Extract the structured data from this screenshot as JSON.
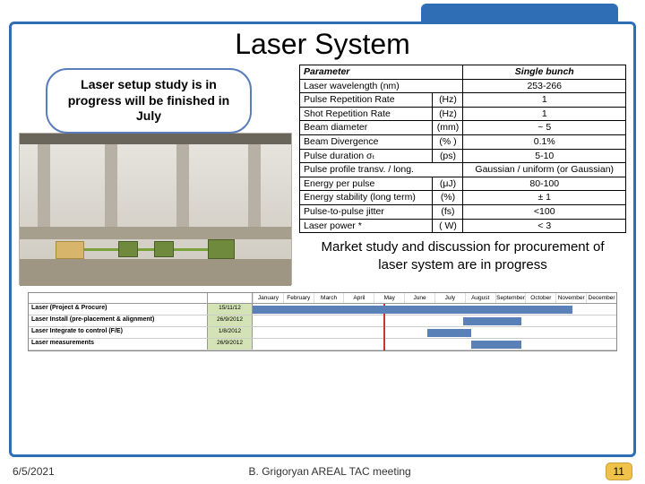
{
  "title": "Laser System",
  "bubble": "Laser setup study is in progress will be finished in July",
  "table": {
    "header_param": "Parameter",
    "header_val": "Single bunch",
    "rows": [
      {
        "name": "Laser wavelength (nm)",
        "unit": "",
        "val": "253-266"
      },
      {
        "name": "Pulse Repetition Rate",
        "unit": "(Hz)",
        "val": "1"
      },
      {
        "name": "Shot Repetition Rate",
        "unit": "(Hz)",
        "val": "1"
      },
      {
        "name": "Beam diameter",
        "unit": "(mm)",
        "val": "~ 5"
      },
      {
        "name": "Beam Divergence",
        "unit": "(% )",
        "val": "0.1%"
      },
      {
        "name": "Pulse duration σₜ",
        "unit": "(ps)",
        "val": "5-10"
      },
      {
        "name": "Pulse profile transv. / long.",
        "unit": "",
        "val": "Gaussian / uniform (or Gaussian)"
      },
      {
        "name": "Energy per pulse",
        "unit": "(μJ)",
        "val": "80-100"
      },
      {
        "name": "Energy stability (long term)",
        "unit": "(%)",
        "val": "± 1"
      },
      {
        "name": "Pulse-to-pulse jitter",
        "unit": "(fs)",
        "val": "<100"
      },
      {
        "name": "Laser power *",
        "unit": "( W)",
        "val": "< 3"
      }
    ]
  },
  "market_note": "Market study and discussion for procurement of laser system are in progress",
  "gantt": {
    "months": [
      "January",
      "February",
      "March",
      "April",
      "May",
      "June",
      "July",
      "August",
      "September",
      "October",
      "November",
      "December"
    ],
    "rows": [
      {
        "label": "Laser (Project & Procure)",
        "date": "15/11/12",
        "bar_left_pct": 0,
        "bar_width_pct": 88
      },
      {
        "label": "Laser Install (pre-placement & alignment)",
        "date": "26/9/2012",
        "bar_left_pct": 58,
        "bar_width_pct": 16
      },
      {
        "label": "Laser Integrate to control (F/E)",
        "date": "1/8/2012",
        "bar_left_pct": 48,
        "bar_width_pct": 12
      },
      {
        "label": "Laser measurements",
        "date": "26/9/2012",
        "bar_left_pct": 60,
        "bar_width_pct": 14
      }
    ],
    "current_line_pct": 36
  },
  "footer": {
    "date": "6/5/2021",
    "center": "B. Grigoryan  AREAL TAC meeting",
    "page": "11"
  },
  "colors": {
    "frame": "#2f6eb5",
    "bubble_border": "#5a7dbb",
    "gantt_bar": "#5a80b8",
    "gantt_date_bg": "#d4e3b5",
    "page_badge": "#f0c24a"
  }
}
